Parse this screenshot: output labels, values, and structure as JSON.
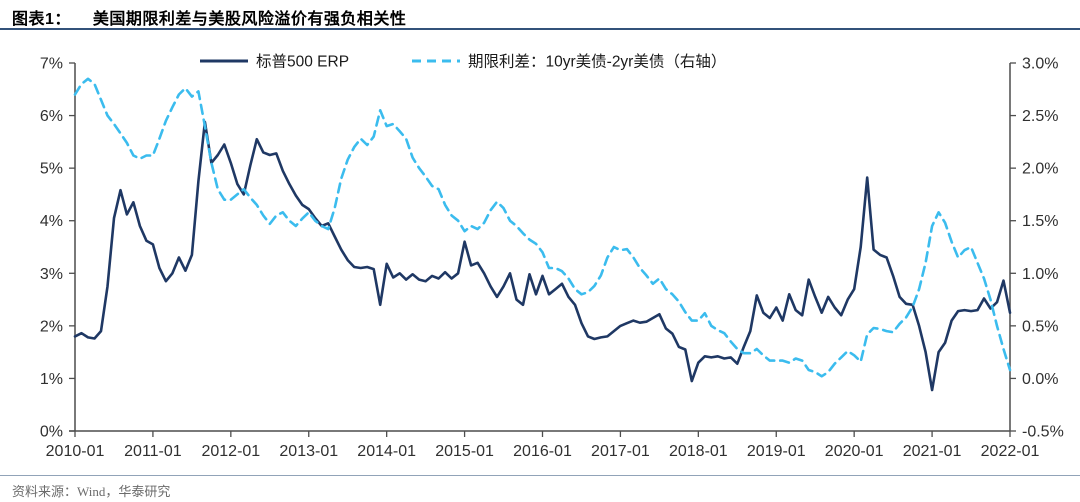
{
  "header": {
    "prefix": "图表1：",
    "title": "美国期限利差与美股风险溢价有强负相关性"
  },
  "source": {
    "text": "资料来源：Wind，华泰研究"
  },
  "colors": {
    "erp_line": "#1F3864",
    "spread_line": "#3BBCEE",
    "axis": "#4d4d4d",
    "tick_label": "#303030",
    "header_rule": "#33527a",
    "footer_rule": "#91a3b8",
    "source_text": "#6b6b6b"
  },
  "chart_data": {
    "type": "line",
    "title": "美国期限利差与美股风险溢价有强负相关性",
    "x_start": "2010-01",
    "x_end": "2022-01",
    "frequency": "monthly",
    "grid": false,
    "legend_position": "top",
    "x_tick_labels": [
      "2010-01",
      "2011-01",
      "2012-01",
      "2013-01",
      "2014-01",
      "2015-01",
      "2016-01",
      "2017-01",
      "2018-01",
      "2019-01",
      "2020-01",
      "2021-01",
      "2022-01"
    ],
    "left_axis": {
      "min": 0,
      "max": 7,
      "tick_labels_top_to_bottom": [
        "7%",
        "6%",
        "5%",
        "4%",
        "3%",
        "2%",
        "1%",
        "0%"
      ]
    },
    "right_axis": {
      "min": -0.5,
      "max": 3.0,
      "tick_labels_top_to_bottom": [
        "3.0%",
        "2.5%",
        "2.0%",
        "1.5%",
        "1.0%",
        "0.5%",
        "0.0%",
        "-0.5%"
      ]
    },
    "series": [
      {
        "name": "标普500 ERP",
        "axis": "left",
        "style": "solid",
        "color": "#1F3864",
        "values": [
          1.8,
          1.86,
          1.78,
          1.76,
          1.9,
          2.75,
          4.05,
          4.58,
          4.12,
          4.35,
          3.9,
          3.62,
          3.55,
          3.1,
          2.85,
          3.0,
          3.3,
          3.05,
          3.35,
          4.75,
          5.88,
          5.1,
          5.25,
          5.45,
          5.1,
          4.7,
          4.5,
          5.05,
          5.55,
          5.3,
          5.25,
          5.28,
          4.95,
          4.7,
          4.48,
          4.3,
          4.22,
          4.05,
          3.9,
          3.95,
          3.7,
          3.45,
          3.25,
          3.12,
          3.1,
          3.12,
          3.08,
          2.4,
          3.18,
          2.92,
          3.0,
          2.88,
          2.98,
          2.88,
          2.85,
          2.95,
          2.9,
          3.02,
          2.9,
          3.0,
          3.6,
          3.15,
          3.2,
          3.0,
          2.75,
          2.55,
          2.75,
          3.0,
          2.5,
          2.4,
          2.98,
          2.6,
          2.95,
          2.6,
          2.7,
          2.8,
          2.55,
          2.4,
          2.05,
          1.8,
          1.75,
          1.78,
          1.8,
          1.9,
          2.0,
          2.05,
          2.1,
          2.06,
          2.08,
          2.15,
          2.22,
          1.95,
          1.85,
          1.6,
          1.55,
          0.95,
          1.3,
          1.42,
          1.4,
          1.42,
          1.38,
          1.4,
          1.28,
          1.6,
          1.9,
          2.58,
          2.25,
          2.15,
          2.35,
          2.1,
          2.6,
          2.3,
          2.2,
          2.88,
          2.55,
          2.25,
          2.55,
          2.35,
          2.2,
          2.5,
          2.7,
          3.5,
          4.82,
          3.45,
          3.35,
          3.3,
          2.95,
          2.55,
          2.42,
          2.4,
          2.0,
          1.5,
          0.78,
          1.5,
          1.68,
          2.1,
          2.28,
          2.3,
          2.28,
          2.3,
          2.52,
          2.33,
          2.45,
          2.86,
          2.25
        ]
      },
      {
        "name": "期限利差：10yr美债-2yr美债（右轴）",
        "axis": "right",
        "style": "dashed",
        "color": "#3BBCEE",
        "values": [
          2.7,
          2.8,
          2.85,
          2.8,
          2.65,
          2.5,
          2.42,
          2.33,
          2.24,
          2.12,
          2.09,
          2.12,
          2.12,
          2.28,
          2.45,
          2.58,
          2.7,
          2.76,
          2.68,
          2.73,
          2.4,
          2.05,
          1.8,
          1.7,
          1.7,
          1.75,
          1.8,
          1.72,
          1.65,
          1.55,
          1.47,
          1.55,
          1.58,
          1.5,
          1.45,
          1.52,
          1.58,
          1.5,
          1.45,
          1.42,
          1.62,
          1.9,
          2.08,
          2.2,
          2.28,
          2.22,
          2.3,
          2.55,
          2.4,
          2.42,
          2.35,
          2.28,
          2.1,
          2.0,
          1.92,
          1.83,
          1.8,
          1.65,
          1.55,
          1.5,
          1.4,
          1.45,
          1.42,
          1.48,
          1.6,
          1.68,
          1.62,
          1.5,
          1.45,
          1.38,
          1.32,
          1.28,
          1.2,
          1.05,
          1.05,
          1.02,
          0.95,
          0.85,
          0.8,
          0.82,
          0.88,
          0.98,
          1.15,
          1.25,
          1.22,
          1.23,
          1.15,
          1.05,
          0.98,
          0.9,
          0.95,
          0.85,
          0.8,
          0.73,
          0.63,
          0.55,
          0.55,
          0.62,
          0.5,
          0.46,
          0.43,
          0.35,
          0.28,
          0.24,
          0.24,
          0.28,
          0.22,
          0.17,
          0.17,
          0.17,
          0.15,
          0.19,
          0.17,
          0.08,
          0.06,
          0.02,
          0.06,
          0.14,
          0.2,
          0.26,
          0.22,
          0.16,
          0.42,
          0.48,
          0.47,
          0.45,
          0.44,
          0.52,
          0.58,
          0.68,
          0.85,
          1.1,
          1.45,
          1.58,
          1.48,
          1.3,
          1.15,
          1.22,
          1.25,
          1.1,
          0.95,
          0.75,
          0.5,
          0.28,
          0.08
        ]
      }
    ]
  }
}
